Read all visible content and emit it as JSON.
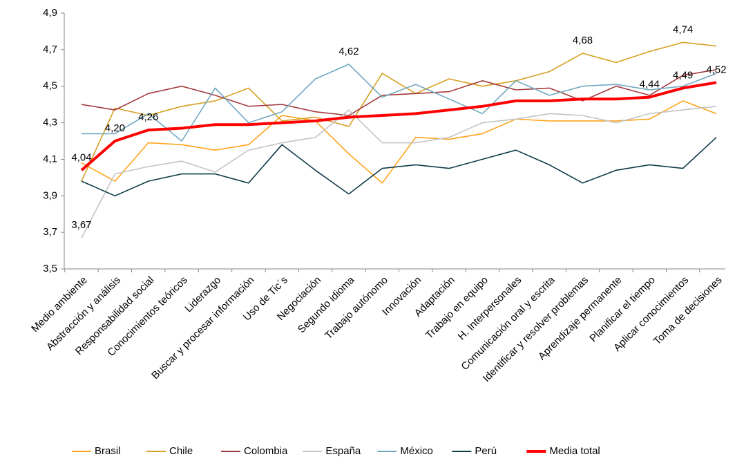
{
  "chart_data": {
    "type": "line",
    "categories": [
      "Medio ambiente",
      "Abstracción y análisis",
      "Responsabilidad social",
      "Conocimientos teóricos",
      "Liderazgo",
      "Buscar y procesar información",
      "Uso de Tic´s",
      "Negociación",
      "Segundo idioma",
      "Trabajo autónomo",
      "Innovación",
      "Adaptación",
      "Trabajo en equipo",
      "H. Interpersonales",
      "Comunicación oral y escrita",
      "Identificar y resolver problemas",
      "Aprendizaje permanente",
      "Planificar el tiempo",
      "Aplicar conocimientos",
      "Toma de decisiones"
    ],
    "series": [
      {
        "name": "Brasil",
        "color": "#ffa31a",
        "values": [
          4.08,
          3.98,
          4.19,
          4.18,
          4.15,
          4.18,
          4.34,
          4.31,
          4.13,
          3.97,
          4.22,
          4.21,
          4.24,
          4.32,
          4.31,
          4.31,
          4.31,
          4.32,
          4.42,
          4.35
        ]
      },
      {
        "name": "Chile",
        "color": "#d4a020",
        "values": [
          3.98,
          4.38,
          4.34,
          4.39,
          4.42,
          4.49,
          4.31,
          4.33,
          4.28,
          4.57,
          4.46,
          4.54,
          4.5,
          4.53,
          4.58,
          4.68,
          4.63,
          4.69,
          4.74,
          4.72
        ],
        "value_labels": [
          null,
          null,
          null,
          null,
          null,
          null,
          null,
          null,
          null,
          null,
          null,
          null,
          null,
          null,
          null,
          "4,68",
          null,
          null,
          "4,74",
          null
        ]
      },
      {
        "name": "Colombia",
        "color": "#a33a3c",
        "values": [
          4.4,
          4.37,
          4.46,
          4.5,
          4.45,
          4.39,
          4.4,
          4.36,
          4.34,
          4.45,
          4.46,
          4.47,
          4.53,
          4.48,
          4.49,
          4.42,
          4.5,
          4.45,
          4.56,
          4.59
        ]
      },
      {
        "name": "España",
        "color": "#c3c3c3",
        "values": [
          3.67,
          4.02,
          4.06,
          4.09,
          4.03,
          4.15,
          4.19,
          4.22,
          4.37,
          4.19,
          4.19,
          4.22,
          4.3,
          4.32,
          4.35,
          4.34,
          4.3,
          4.35,
          4.37,
          4.39
        ],
        "value_labels": [
          "3,67",
          null,
          null,
          null,
          null,
          null,
          null,
          null,
          null,
          null,
          null,
          null,
          null,
          null,
          null,
          null,
          null,
          null,
          null,
          null
        ]
      },
      {
        "name": "México",
        "color": "#6fa8bf",
        "values": [
          4.24,
          4.24,
          4.35,
          4.2,
          4.49,
          4.3,
          4.36,
          4.54,
          4.62,
          4.44,
          4.51,
          4.43,
          4.35,
          4.53,
          4.45,
          4.5,
          4.51,
          4.48,
          4.5,
          4.57
        ],
        "value_labels": [
          null,
          null,
          null,
          null,
          null,
          null,
          null,
          null,
          "4,62",
          null,
          null,
          null,
          null,
          null,
          null,
          null,
          null,
          null,
          null,
          null
        ]
      },
      {
        "name": "Perú",
        "color": "#0e3a48",
        "values": [
          3.98,
          3.9,
          3.98,
          4.02,
          4.02,
          3.97,
          4.18,
          4.04,
          3.91,
          4.05,
          4.07,
          4.05,
          4.1,
          4.15,
          4.07,
          3.97,
          4.04,
          4.07,
          4.05,
          4.22
        ]
      },
      {
        "name": "Media total",
        "color": "#ff0000",
        "width": 4,
        "values": [
          4.04,
          4.2,
          4.26,
          4.27,
          4.29,
          4.29,
          4.3,
          4.31,
          4.33,
          4.34,
          4.35,
          4.37,
          4.39,
          4.42,
          4.42,
          4.43,
          4.43,
          4.44,
          4.49,
          4.52
        ],
        "value_labels": [
          "4,04",
          "4,20",
          "4,26",
          null,
          null,
          null,
          null,
          null,
          null,
          null,
          null,
          null,
          null,
          null,
          null,
          null,
          null,
          "4,44",
          "4,49",
          "4,52"
        ]
      }
    ],
    "ylim": [
      3.5,
      4.9
    ],
    "yticks": [
      {
        "value": 3.5,
        "label": "3,5"
      },
      {
        "value": 3.7,
        "label": "3,7"
      },
      {
        "value": 3.9,
        "label": "3,9"
      },
      {
        "value": 4.1,
        "label": "4,1"
      },
      {
        "value": 4.3,
        "label": "4,3"
      },
      {
        "value": 4.5,
        "label": "4,5"
      },
      {
        "value": 4.7,
        "label": "4,7"
      },
      {
        "value": 4.9,
        "label": "4,9"
      }
    ],
    "grid": false,
    "legend": "bottom"
  }
}
